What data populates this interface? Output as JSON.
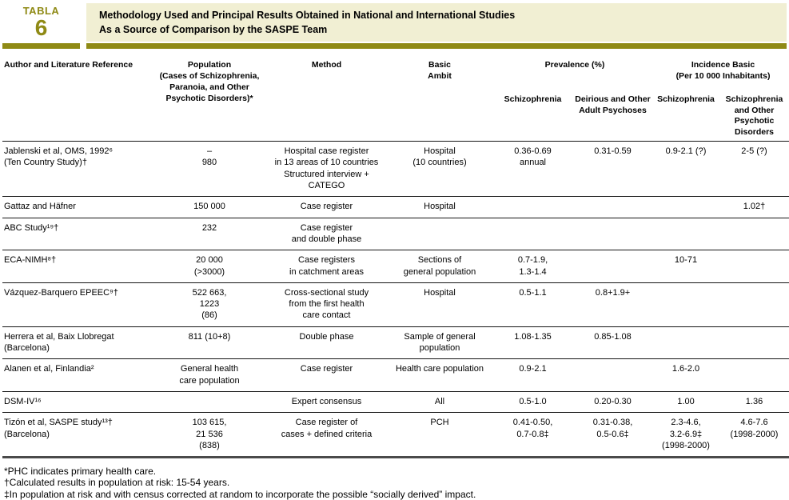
{
  "accent_color": "#8f8a15",
  "title_bg_color": "#f1efd3",
  "tab": {
    "label": "TABLA",
    "number": "6"
  },
  "title": "Methodology Used and Principal Results Obtained in National and International Studies\nAs a Source of Comparison by the SASPE Team",
  "table": {
    "column_keys": [
      "author",
      "population",
      "method",
      "basic-ambit",
      "prevalence-schizophrenia",
      "prevalence-delirious",
      "incidence-schizophrenia",
      "incidence-schizophrenia-other"
    ],
    "headers": {
      "author": "Author and Literature Reference",
      "population": "Population\n(Cases of Schizophrenia,\nParanoia, and Other\nPsychotic Disorders)*",
      "method": "Method",
      "basic_ambit": "Basic\nAmbit",
      "prevalence_group": "Prevalence (%)",
      "incidence_group": "Incidence Basic\n(Per 10 000 Inhabitants)",
      "prevalence_schizophrenia": "Schizophrenia",
      "prevalence_delirious": "Deirious and Other\nAdult Psychoses",
      "incidence_schizophrenia": "Schizophrenia",
      "incidence_schizophrenia_other": "Schizophrenia\nand Other\nPsychotic\nDisorders"
    },
    "rows": [
      {
        "cells": [
          "Jablenski et al, OMS, 1992⁶\n(Ten Country Study)†",
          "–\n980",
          "Hospital case register\nin 13 areas of 10 countries\nStructured interview + CATEGO",
          "Hospital\n(10 countries)",
          "0.36-0.69\nannual",
          "0.31-0.59",
          "0.9-2.1 (?)",
          "2-5 (?)"
        ]
      },
      {
        "cells": [
          "Gattaz and Häfner",
          "150 000",
          "Case register",
          "Hospital",
          "",
          "",
          "",
          "1.02†"
        ]
      },
      {
        "cells": [
          "ABC Study¹⁹†",
          "232",
          "Case register\nand double phase",
          "",
          "",
          "",
          "",
          ""
        ]
      },
      {
        "cells": [
          "ECA-NIMH⁸†",
          "20 000\n(>3000)",
          "Case registers\nin catchment areas",
          "Sections of\ngeneral population",
          "0.7-1.9,\n1.3-1.4",
          "",
          "10-71",
          ""
        ]
      },
      {
        "cells": [
          "Vázquez-Barquero EPEEC⁹†",
          "522 663,\n1223\n(86)",
          "Cross-sectional study\nfrom the first health\ncare contact",
          "Hospital",
          "0.5-1.1",
          "0.8+1.9+",
          "",
          ""
        ]
      },
      {
        "cells": [
          "Herrera et al, Baix Llobregat\n(Barcelona)",
          "811 (10+8)",
          "Double phase",
          "Sample of general\npopulation",
          "1.08-1.35",
          "0.85-1.08",
          "",
          ""
        ]
      },
      {
        "cells": [
          "Alanen et al, Finlandia²",
          "General health\ncare population",
          "Case register",
          "Health care population",
          "0.9-2.1",
          "",
          "1.6-2.0",
          ""
        ]
      },
      {
        "cells": [
          "DSM-IV¹⁶",
          "",
          "Expert consensus",
          "All",
          "0.5-1.0",
          "0.20-0.30",
          "1.00",
          "1.36"
        ]
      },
      {
        "cells": [
          "Tizón et al, SASPE study¹³†\n(Barcelona)",
          "103 615,\n21 536\n(838)",
          "Case register of\ncases + defined criteria",
          "PCH",
          "0.41-0.50,\n0.7-0.8‡",
          "0.31-0.38,\n0.5-0.6‡",
          "2.3-4.6,\n3.2-6.9‡\n(1998-2000)",
          "4.6-7.6\n(1998-2000)"
        ]
      }
    ]
  },
  "footnotes": [
    "*PHC indicates primary health care.",
    "†Calculated results in population at risk: 15-54 years.",
    "‡In population at risk and with census corrected at random to incorporate the possible “socially derived” impact."
  ]
}
